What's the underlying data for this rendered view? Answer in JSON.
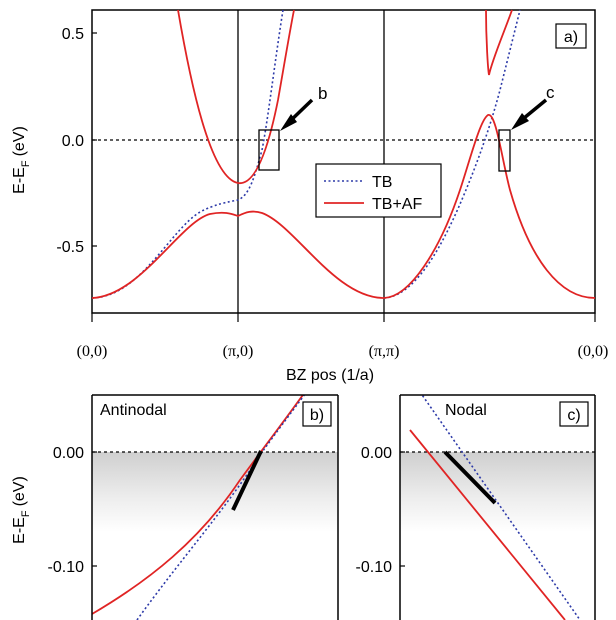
{
  "chart_data": [
    {
      "panel": "a)",
      "type": "line",
      "xlabel": "BZ pos (1/a)",
      "ylabel_main": "E-E",
      "ylabel_sub": "F",
      "ylabel_unit": "(eV)",
      "x_ticks": [
        "(0,0)",
        "(π,0)",
        "(π,π)",
        "(0,0)"
      ],
      "y_ticks": [
        "0.5",
        "0.0",
        "-0.5"
      ],
      "ylim": [
        -0.82,
        0.6
      ],
      "legend": [
        "TB",
        "TB+AF"
      ],
      "annotations": [
        "b",
        "c"
      ],
      "series": [
        {
          "name": "TB",
          "style": "dotted",
          "color": "#2d3aa8",
          "points": [
            [
              0,
              -0.74
            ],
            [
              0.5,
              -0.53
            ],
            [
              0.7,
              -0.41
            ],
            [
              0.85,
              -0.33
            ],
            [
              1.0,
              -0.28
            ],
            [
              1.1,
              -0.18
            ],
            [
              1.2,
              0.05
            ],
            [
              1.3,
              0.35
            ],
            [
              1.38,
              0.6
            ],
            [
              2.0,
              -0.74
            ],
            [
              2.3,
              -0.46
            ],
            [
              2.5,
              -0.24
            ],
            [
              2.6,
              -0.07
            ],
            [
              2.7,
              0.15
            ],
            [
              2.78,
              0.35
            ]
          ]
        },
        {
          "name": "TB+AF",
          "style": "solid",
          "color": "#e02424",
          "points": [
            [
              0,
              -0.74
            ],
            [
              0.5,
              -0.55
            ],
            [
              0.8,
              -0.37
            ],
            [
              0.95,
              -0.35
            ],
            [
              1.0,
              -0.36
            ],
            [
              1.15,
              -0.34
            ],
            [
              1.5,
              -0.48
            ],
            [
              2.0,
              -0.74
            ],
            [
              2.3,
              -0.45
            ],
            [
              2.5,
              -0.22
            ],
            [
              2.7,
              0.12
            ],
            [
              2.78,
              -0.05
            ],
            [
              3.0,
              -0.74
            ]
          ]
        }
      ]
    },
    {
      "panel": "b)",
      "type": "line",
      "title": "Antinodal",
      "ylabel_main": "E-E",
      "ylabel_sub": "F",
      "ylabel_unit": "(eV)",
      "y_ticks": [
        "0.00",
        "-0.10"
      ],
      "ylim": [
        -0.145,
        0.045
      ],
      "series": [
        {
          "name": "TB",
          "style": "dotted",
          "color": "#2d3aa8",
          "points": [
            [
              0.2,
              -0.145
            ],
            [
              0.6,
              -0.06
            ],
            [
              1.0,
              0.045
            ]
          ]
        },
        {
          "name": "TB+AF",
          "style": "solid",
          "color": "#e02424",
          "points": [
            [
              0.0,
              -0.14
            ],
            [
              0.4,
              -0.095
            ],
            [
              0.8,
              -0.01
            ],
            [
              1.0,
              0.045
            ]
          ]
        }
      ]
    },
    {
      "panel": "c)",
      "type": "line",
      "title": "Nodal",
      "y_ticks": [
        "0.00",
        "-0.10"
      ],
      "ylim": [
        -0.145,
        0.045
      ],
      "series": [
        {
          "name": "TB",
          "style": "dotted",
          "color": "#2d3aa8",
          "points": [
            [
              0.05,
              0.045
            ],
            [
              1.0,
              -0.145
            ]
          ]
        },
        {
          "name": "TB+AF",
          "style": "solid",
          "color": "#e02424",
          "points": [
            [
              0.0,
              0.04
            ],
            [
              1.0,
              -0.145
            ]
          ]
        }
      ]
    }
  ]
}
